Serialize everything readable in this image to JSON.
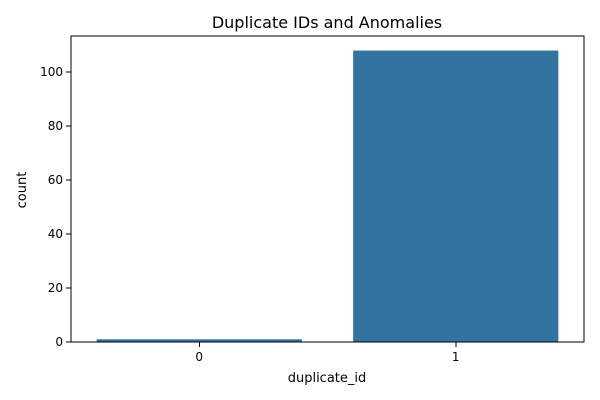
{
  "chart_data": {
    "type": "bar",
    "title": "Duplicate IDs and Anomalies",
    "xlabel": "duplicate_id",
    "ylabel": "count",
    "categories": [
      "0",
      "1"
    ],
    "values": [
      1,
      108
    ],
    "ylim": [
      0,
      113.4
    ],
    "yticks": [
      0,
      20,
      40,
      60,
      80,
      100
    ],
    "bar_color": "#3274a1",
    "grid": false,
    "legend": "none"
  }
}
